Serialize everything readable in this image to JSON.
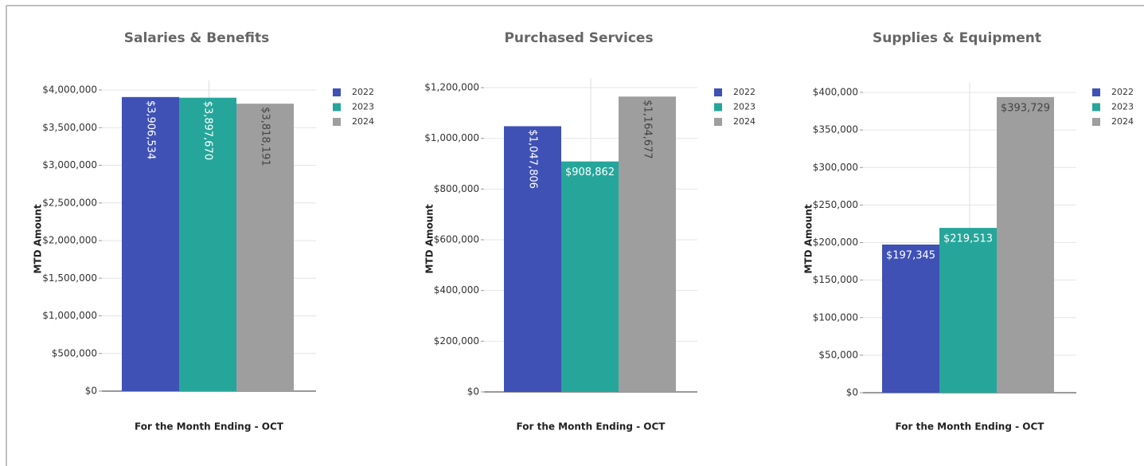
{
  "chart_data": [
    {
      "type": "bar",
      "title": "Salaries & Benefits",
      "ylabel": "MTD Amount",
      "xlabel": "For the Month Ending - OCT",
      "series": [
        {
          "name": "2022",
          "color": "#3f51b5",
          "values": [
            3906534
          ],
          "value_labels": [
            "$3,906,534"
          ]
        },
        {
          "name": "2023",
          "color": "#26a69a",
          "values": [
            3897670
          ],
          "value_labels": [
            "$3,897,670"
          ]
        },
        {
          "name": "2024",
          "color": "#9e9e9e",
          "values": [
            3818191
          ],
          "value_labels": [
            "$3,818,191"
          ]
        }
      ],
      "ylim": [
        0,
        4000000
      ],
      "yticks": [
        {
          "value": 0,
          "label": "$0"
        },
        {
          "value": 500000,
          "label": "$500,000"
        },
        {
          "value": 1000000,
          "label": "$1,000,000"
        },
        {
          "value": 1500000,
          "label": "$1,500,000"
        },
        {
          "value": 2000000,
          "label": "$2,000,000"
        },
        {
          "value": 2500000,
          "label": "$2,500,000"
        },
        {
          "value": 3000000,
          "label": "$3,000,000"
        },
        {
          "value": 3500000,
          "label": "$3,500,000"
        },
        {
          "value": 4000000,
          "label": "$4,000,000"
        }
      ],
      "grid": true,
      "legend": "right"
    },
    {
      "type": "bar",
      "title": "Purchased Services",
      "ylabel": "MTD Amount",
      "xlabel": "For the Month Ending - OCT",
      "series": [
        {
          "name": "2022",
          "color": "#3f51b5",
          "values": [
            1047806
          ],
          "value_labels": [
            "$1,047,806"
          ]
        },
        {
          "name": "2023",
          "color": "#26a69a",
          "values": [
            908862
          ],
          "value_labels": [
            "$908,862"
          ]
        },
        {
          "name": "2024",
          "color": "#9e9e9e",
          "values": [
            1164677
          ],
          "value_labels": [
            "$1,164,677"
          ]
        }
      ],
      "ylim": [
        0,
        1200000
      ],
      "yticks": [
        {
          "value": 0,
          "label": "$0"
        },
        {
          "value": 200000,
          "label": "$200,000"
        },
        {
          "value": 400000,
          "label": "$400,000"
        },
        {
          "value": 600000,
          "label": "$600,000"
        },
        {
          "value": 800000,
          "label": "$800,000"
        },
        {
          "value": 1000000,
          "label": "$1,000,000"
        },
        {
          "value": 1200000,
          "label": "$1,200,000"
        }
      ],
      "grid": true,
      "legend": "right"
    },
    {
      "type": "bar",
      "title": "Supplies & Equipment",
      "ylabel": "MTD Amount",
      "xlabel": "For the Month Ending - OCT",
      "series": [
        {
          "name": "2022",
          "color": "#3f51b5",
          "values": [
            197345
          ],
          "value_labels": [
            "$197,345"
          ]
        },
        {
          "name": "2023",
          "color": "#26a69a",
          "values": [
            219513
          ],
          "value_labels": [
            "$219,513"
          ]
        },
        {
          "name": "2024",
          "color": "#9e9e9e",
          "values": [
            393729
          ],
          "value_labels": [
            "$393,729"
          ]
        }
      ],
      "ylim": [
        0,
        400000
      ],
      "yticks": [
        {
          "value": 0,
          "label": "$0"
        },
        {
          "value": 50000,
          "label": "$50,000"
        },
        {
          "value": 100000,
          "label": "$100,000"
        },
        {
          "value": 150000,
          "label": "$150,000"
        },
        {
          "value": 200000,
          "label": "$200,000"
        },
        {
          "value": 250000,
          "label": "$250,000"
        },
        {
          "value": 300000,
          "label": "$300,000"
        },
        {
          "value": 350000,
          "label": "$350,000"
        },
        {
          "value": 400000,
          "label": "$400,000"
        }
      ],
      "grid": true,
      "legend": "right"
    }
  ]
}
